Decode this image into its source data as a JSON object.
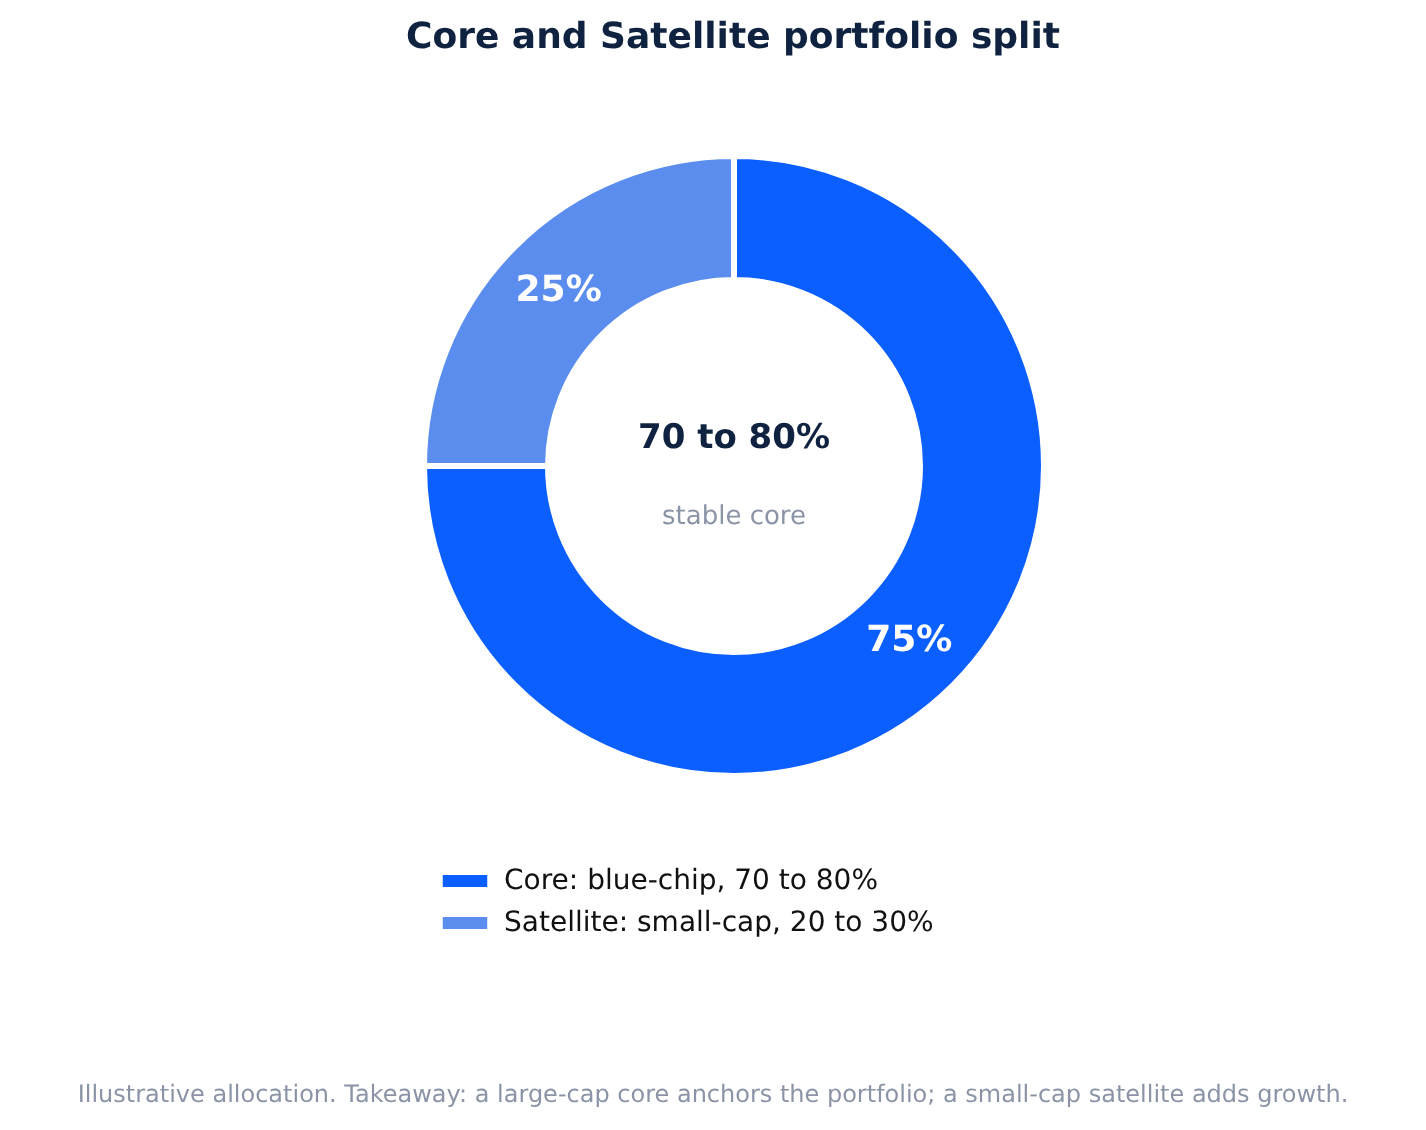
{
  "chart_data": {
    "type": "donut",
    "title": "Core and Satellite portfolio split",
    "categories": [
      "Core: blue-chip, 70 to 80%",
      "Satellite: small-cap, 20 to 30%"
    ],
    "values": [
      75,
      25
    ],
    "colors": [
      "#0b5fff",
      "#5b8def"
    ],
    "value_labels": [
      "75%",
      "25%"
    ],
    "legend": "bottom",
    "annotations": [
      "70 to 80%",
      "stable core",
      "Illustrative allocation. Takeaway: a large-cap core anchors the portfolio; a small-cap satellite adds growth."
    ]
  }
}
